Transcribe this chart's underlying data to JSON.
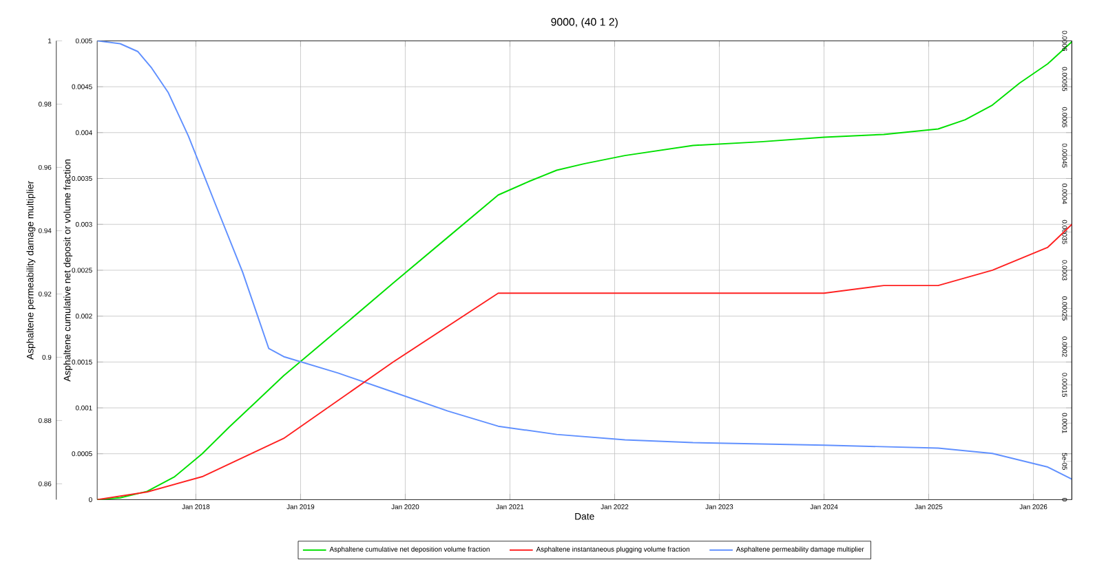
{
  "chart_data": {
    "type": "line",
    "title": "9000, (40 1 2)",
    "xlabel": "Date",
    "ylabel": "Asphaltene cumulative net deposit or volume fraction",
    "y2label": "Asphaltene permeability damage multiplier",
    "xlim": [
      "2017-01-22",
      "2026-05-15"
    ],
    "xticks": [
      {
        "value": "2018-01-01",
        "label": "Jan 2018"
      },
      {
        "value": "2019-01-01",
        "label": "Jan 2019"
      },
      {
        "value": "2020-01-01",
        "label": "Jan 2020"
      },
      {
        "value": "2021-01-01",
        "label": "Jan 2021"
      },
      {
        "value": "2022-01-01",
        "label": "Jan 2022"
      },
      {
        "value": "2023-01-01",
        "label": "Jan 2023"
      },
      {
        "value": "2024-01-01",
        "label": "Jan 2024"
      },
      {
        "value": "2025-01-01",
        "label": "Jan 2025"
      },
      {
        "value": "2026-01-01",
        "label": "Jan 2026"
      }
    ],
    "ylim": [
      0,
      0.005
    ],
    "yticks": [
      0,
      0.0005,
      0.001,
      0.0015,
      0.002,
      0.0025,
      0.003,
      0.0035,
      0.004,
      0.0045,
      0.005
    ],
    "y2lim": [
      0.855,
      1
    ],
    "y2ticks": [
      0.86,
      0.88,
      0.9,
      0.92,
      0.94,
      0.96,
      0.98,
      1
    ],
    "y3lim": [
      0,
      0.0006
    ],
    "y3ticks": [
      0,
      5e-05,
      0.0001,
      0.00015,
      0.0002,
      0.00025,
      0.0003,
      0.00035,
      0.0004,
      0.00045,
      0.0005,
      0.00055,
      0.0006
    ],
    "grid": true,
    "legend": "bottom",
    "series": [
      {
        "name": "Asphaltene cumulative net deposition volume fraction",
        "color": "#00e000",
        "x": [
          "2017-01-22",
          "2017-04-12",
          "2017-07-15",
          "2017-10-19",
          "2018-01-23",
          "2018-04-27",
          "2018-07-31",
          "2018-11-03",
          "2019-05-12",
          "2019-11-20",
          "2020-05-29",
          "2020-11-21",
          "2021-03-10",
          "2021-06-13",
          "2021-09-16",
          "2022-02-06",
          "2022-10-01",
          "2023-05-26",
          "2024-01-01",
          "2024-07-28",
          "2025-02-03",
          "2025-05-08",
          "2025-08-11",
          "2025-11-14",
          "2026-02-20",
          "2026-05-15"
        ],
        "values": [
          0,
          2e-05,
          9e-05,
          0.00025,
          0.0005,
          0.00079,
          0.00107,
          0.00135,
          0.00185,
          0.00236,
          0.00286,
          0.00332,
          0.00347,
          0.00359,
          0.00366,
          0.00375,
          0.00386,
          0.0039,
          0.00395,
          0.00398,
          0.00404,
          0.00414,
          0.0043,
          0.00454,
          0.00475,
          0.00499
        ]
      },
      {
        "name": "Asphaltene instantaneous plugging volume fraction",
        "color": "#ff2020",
        "axis": "y3",
        "x": [
          "2017-01-22",
          "2017-07-15",
          "2018-01-23",
          "2018-11-03",
          "2019-11-20",
          "2020-11-21",
          "2021-09-16",
          "2022-10-01",
          "2024-01-01",
          "2024-07-28",
          "2025-02-03",
          "2025-08-11",
          "2026-02-20",
          "2026-05-15"
        ],
        "values": [
          0,
          1e-05,
          3e-05,
          8e-05,
          0.00018,
          0.00027,
          0.00027,
          0.00027,
          0.00027,
          0.00028,
          0.00028,
          0.0003,
          0.00033,
          0.00036
        ]
      },
      {
        "name": "Asphaltene permeability damage multiplier",
        "color": "#6090ff",
        "axis": "y2",
        "x": [
          "2017-01-22",
          "2017-04-12",
          "2017-06-13",
          "2017-07-31",
          "2017-09-27",
          "2017-12-06",
          "2018-03-10",
          "2018-06-13",
          "2018-09-12",
          "2018-11-03",
          "2019-05-12",
          "2019-11-20",
          "2020-05-29",
          "2020-11-21",
          "2021-06-13",
          "2022-02-06",
          "2022-10-01",
          "2024-01-01",
          "2025-02-03",
          "2025-08-11",
          "2026-02-20",
          "2026-05-15"
        ],
        "values": [
          1,
          0.9991,
          0.9966,
          0.9914,
          0.9836,
          0.9699,
          0.9484,
          0.9269,
          0.9028,
          0.9002,
          0.895,
          0.889,
          0.883,
          0.8782,
          0.8756,
          0.8739,
          0.873,
          0.8722,
          0.8713,
          0.8696,
          0.8653,
          0.8615
        ]
      }
    ]
  }
}
